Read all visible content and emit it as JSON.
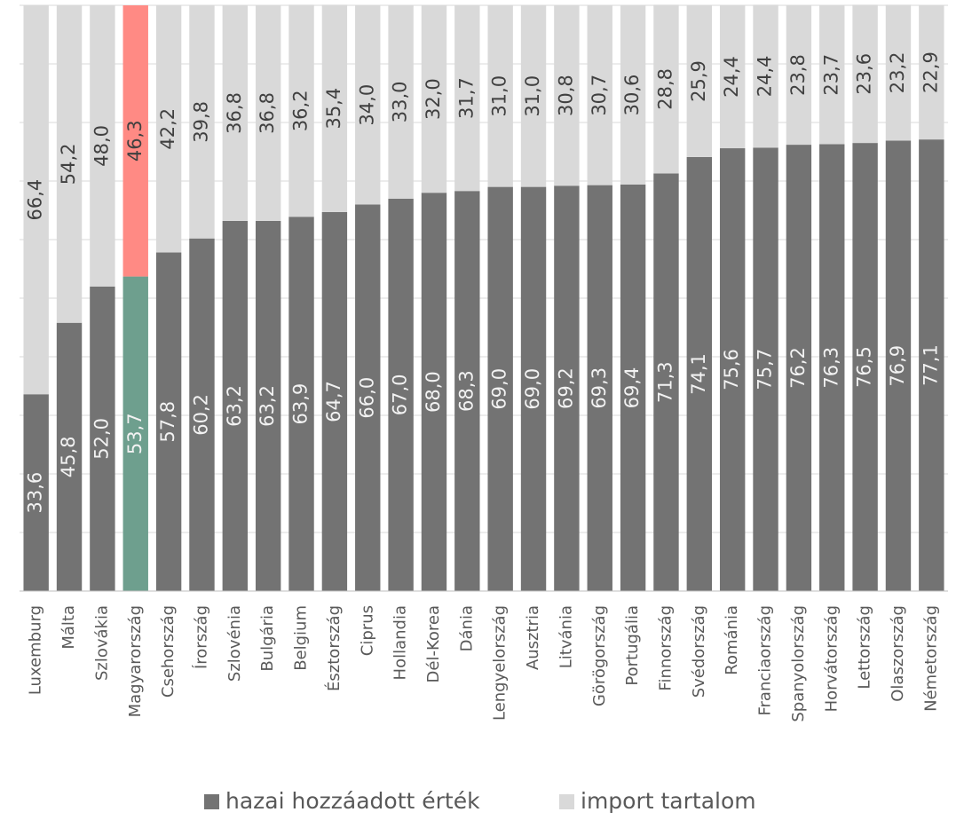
{
  "chart_data": {
    "type": "stacked_bar",
    "categories": [
      "Luxemburg",
      "Málta",
      "Szlovákia",
      "Magyarország",
      "Csehország",
      "Írország",
      "Szlovénia",
      "Bulgária",
      "Belgium",
      "Észtország",
      "Ciprus",
      "Hollandia",
      "Dél-Korea",
      "Dánia",
      "Lengyelország",
      "Ausztria",
      "Litvánia",
      "Görögország",
      "Portugália",
      "Finnország",
      "Svédország",
      "Románia",
      "Franciaország",
      "Spanyolország",
      "Horvátország",
      "Lettország",
      "Olaszország",
      "Németország"
    ],
    "series": [
      {
        "name": "hazai hozzáadott érték",
        "color": "#737373",
        "colors": [
          "#737373",
          "#737373",
          "#737373",
          "#6e9f8e",
          "#737373",
          "#737373",
          "#737373",
          "#737373",
          "#737373",
          "#737373",
          "#737373",
          "#737373",
          "#737373",
          "#737373",
          "#737373",
          "#737373",
          "#737373",
          "#737373",
          "#737373",
          "#737373",
          "#737373",
          "#737373",
          "#737373",
          "#737373",
          "#737373",
          "#737373",
          "#737373",
          "#737373"
        ],
        "values": [
          33.6,
          45.8,
          52.0,
          53.7,
          57.8,
          60.2,
          63.2,
          63.2,
          63.9,
          64.7,
          66.0,
          67.0,
          68.0,
          68.3,
          69.0,
          69.0,
          69.2,
          69.3,
          69.4,
          71.3,
          74.1,
          75.6,
          75.7,
          76.2,
          76.3,
          76.5,
          76.9,
          77.1
        ],
        "value_labels": [
          "33,6",
          "45,8",
          "52,0",
          "53,7",
          "57,8",
          "60,2",
          "63,2",
          "63,2",
          "63,9",
          "64,7",
          "66,0",
          "67,0",
          "68,0",
          "68,3",
          "69,0",
          "69,0",
          "69,2",
          "69,3",
          "69,4",
          "71,3",
          "74,1",
          "75,6",
          "75,7",
          "76,2",
          "76,3",
          "76,5",
          "76,9",
          "77,1"
        ]
      },
      {
        "name": "import tartalom",
        "color": "#d9d9d9",
        "colors": [
          "#d9d9d9",
          "#d9d9d9",
          "#d9d9d9",
          "#ff8a84",
          "#d9d9d9",
          "#d9d9d9",
          "#d9d9d9",
          "#d9d9d9",
          "#d9d9d9",
          "#d9d9d9",
          "#d9d9d9",
          "#d9d9d9",
          "#d9d9d9",
          "#d9d9d9",
          "#d9d9d9",
          "#d9d9d9",
          "#d9d9d9",
          "#d9d9d9",
          "#d9d9d9",
          "#d9d9d9",
          "#d9d9d9",
          "#d9d9d9",
          "#d9d9d9",
          "#d9d9d9",
          "#d9d9d9",
          "#d9d9d9",
          "#d9d9d9",
          "#d9d9d9"
        ],
        "values": [
          66.4,
          54.2,
          48.0,
          46.3,
          42.2,
          39.8,
          36.8,
          36.8,
          36.2,
          35.4,
          34.0,
          33.0,
          32.0,
          31.7,
          31.0,
          31.0,
          30.8,
          30.7,
          30.6,
          28.8,
          25.9,
          24.4,
          24.4,
          23.8,
          23.7,
          23.6,
          23.2,
          22.9
        ],
        "value_labels": [
          "66,4",
          "54,2",
          "48,0",
          "46,3",
          "42,2",
          "39,8",
          "36,8",
          "36,8",
          "36,2",
          "35,4",
          "34,0",
          "33,0",
          "32,0",
          "31,7",
          "31,0",
          "31,0",
          "30,8",
          "30,7",
          "30,6",
          "28,8",
          "25,9",
          "24,4",
          "24,4",
          "23,8",
          "23,7",
          "23,6",
          "23,2",
          "22,9"
        ]
      }
    ],
    "ylim": [
      0,
      100
    ],
    "yticks": [
      0,
      10,
      20,
      30,
      40,
      50,
      60,
      70,
      80,
      90,
      100
    ],
    "grid": true,
    "legend": "bottom"
  }
}
